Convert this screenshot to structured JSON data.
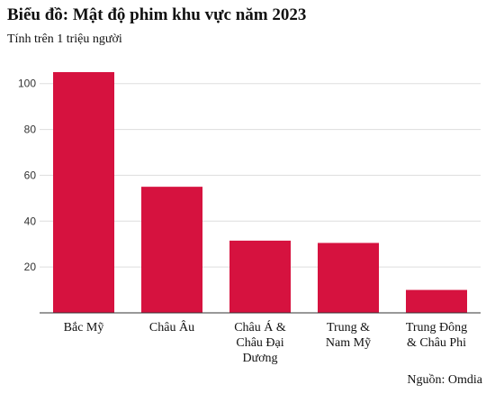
{
  "title": "Biểu đồ: Mật độ phim khu vực năm 2023",
  "subtitle": "Tính trên 1 triệu người",
  "source": "Nguồn: Omdia",
  "chart_data": {
    "type": "bar",
    "categories": [
      [
        "Bắc Mỹ"
      ],
      [
        "Châu Âu"
      ],
      [
        "Châu Á &",
        "Châu Đại",
        "Dương"
      ],
      [
        "Trung &",
        "Nam Mỹ"
      ],
      [
        "Trung Đông",
        "& Châu Phi"
      ]
    ],
    "values": [
      105,
      55,
      31.5,
      30.5,
      10
    ],
    "yticks": [
      20,
      40,
      60,
      80,
      100
    ],
    "ylim": [
      0,
      108
    ],
    "grid": true,
    "bar_color": "#d6123f",
    "grid_color": "#dddddd",
    "axis_color": "#333333"
  }
}
